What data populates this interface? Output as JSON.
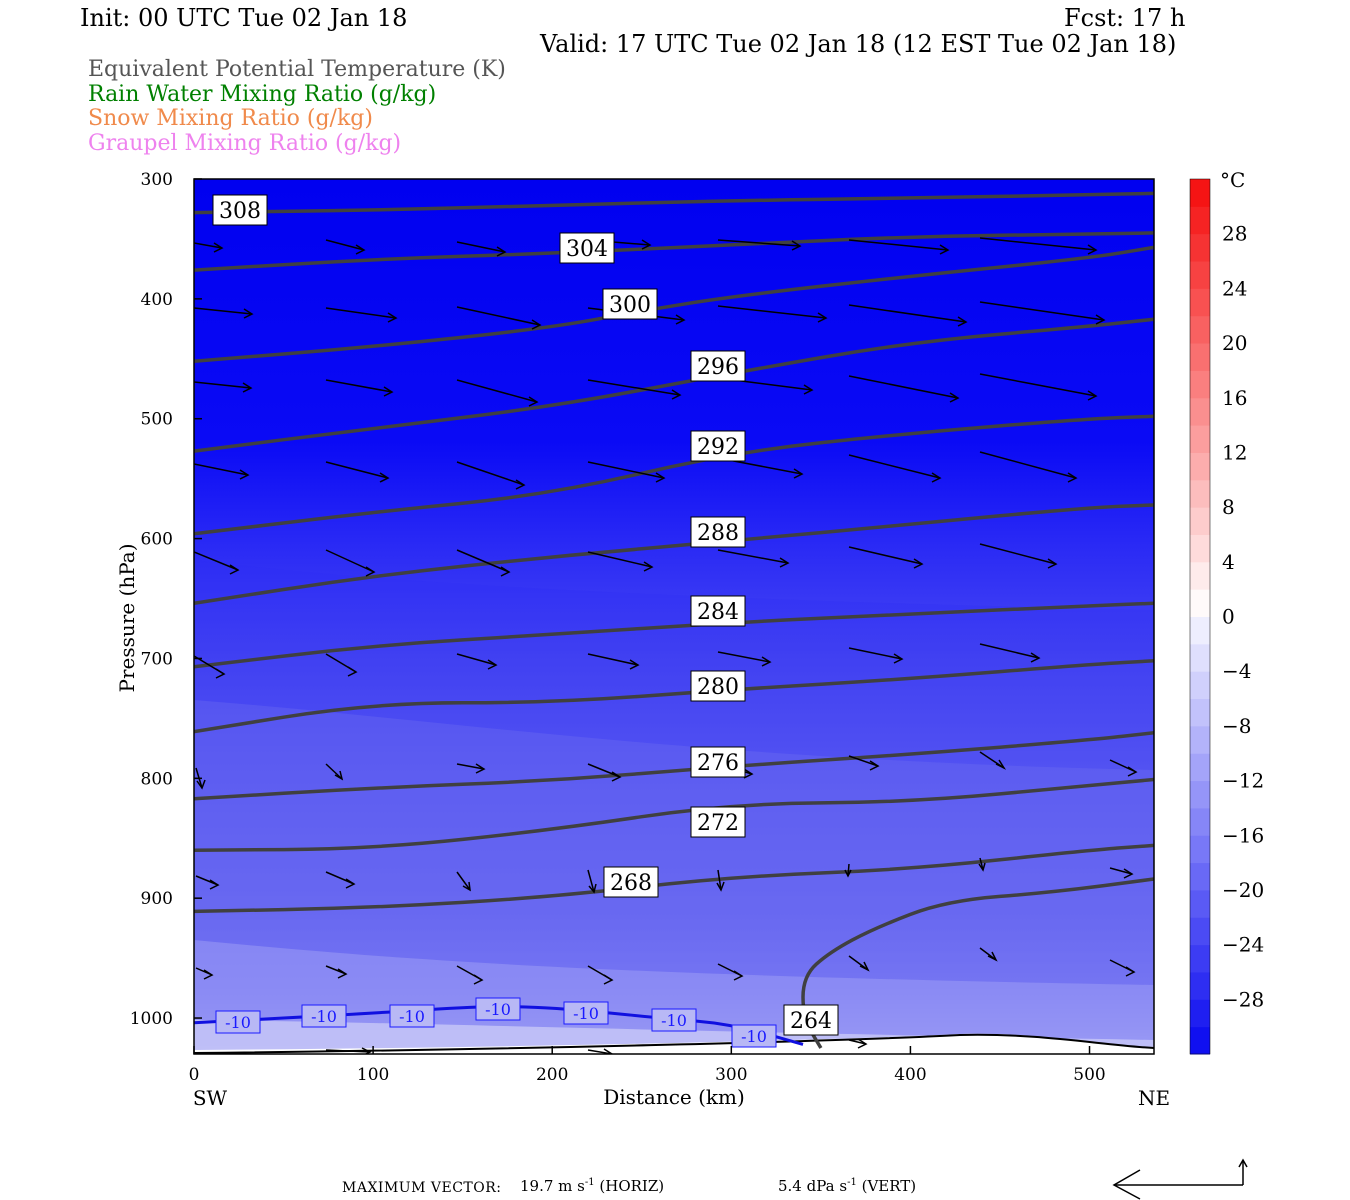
{
  "header": {
    "init": "Init: 00 UTC Tue 02 Jan 18",
    "fcst": "Fcst:   17 h",
    "valid": "Valid: 17 UTC Tue 02 Jan 18 (12 EST Tue 02 Jan 18)"
  },
  "legend": [
    {
      "text": "Equivalent Potential Temperature (K)",
      "color": "#555555"
    },
    {
      "text": "Rain Water Mixing Ratio (g/kg)",
      "color": "#008000"
    },
    {
      "text": "Snow Mixing Ratio (g/kg)",
      "color": "#f08a4b"
    },
    {
      "text": "Graupel Mixing Ratio (g/kg)",
      "color": "#ee82ee"
    }
  ],
  "footer": {
    "label": "MAXIMUM VECTOR:",
    "horiz": "19.7 m s",
    "horiz_sup": "-1",
    "horiz_tag": "(HORIZ)",
    "vert": "5.4 dPa s",
    "vert_sup": "-1",
    "vert_tag": "(VERT)"
  },
  "chart_data": {
    "type": "contour",
    "ylabel": "Pressure (hPa)",
    "xlabel": "Distance (km)",
    "x_end_labels": {
      "left": "SW",
      "right": "NE"
    },
    "xlim": [
      0,
      536
    ],
    "ylim": [
      1030,
      300
    ],
    "x_ticks": [
      0,
      100,
      200,
      300,
      400,
      500
    ],
    "y_ticks": [
      300,
      400,
      500,
      600,
      700,
      800,
      900,
      1000
    ],
    "colorbar": {
      "unit": "°C",
      "levels": [
        -32,
        -30,
        -28,
        -26,
        -24,
        -22,
        -20,
        -18,
        -16,
        -14,
        -12,
        -10,
        -8,
        -6,
        -4,
        -2,
        0,
        2,
        4,
        6,
        8,
        10,
        12,
        14,
        16,
        18,
        20,
        22,
        24,
        26,
        28,
        30,
        32
      ],
      "tick_labels": [
        -28,
        -24,
        -20,
        -16,
        -12,
        -8,
        -4,
        0,
        4,
        8,
        12,
        16,
        20,
        24,
        28
      ]
    },
    "theta_e_contours": [
      {
        "label": "308",
        "points": [
          [
            0,
            328
          ],
          [
            100,
            326
          ],
          [
            200,
            322
          ],
          [
            300,
            318
          ],
          [
            400,
            316
          ],
          [
            500,
            313
          ],
          [
            536,
            312
          ]
        ]
      },
      {
        "label": "304",
        "points": [
          [
            0,
            376
          ],
          [
            100,
            367
          ],
          [
            200,
            362
          ],
          [
            300,
            355
          ],
          [
            400,
            348
          ],
          [
            500,
            346
          ],
          [
            536,
            345
          ]
        ]
      },
      {
        "label": "300",
        "points": [
          [
            0,
            452
          ],
          [
            100,
            440
          ],
          [
            200,
            424
          ],
          [
            250,
            410
          ],
          [
            300,
            398
          ],
          [
            400,
            381
          ],
          [
            500,
            366
          ],
          [
            536,
            357
          ]
        ]
      },
      {
        "label": "296",
        "points": [
          [
            0,
            527
          ],
          [
            100,
            508
          ],
          [
            200,
            490
          ],
          [
            300,
            462
          ],
          [
            400,
            436
          ],
          [
            500,
            423
          ],
          [
            536,
            417
          ]
        ]
      },
      {
        "label": "292",
        "points": [
          [
            0,
            596
          ],
          [
            100,
            578
          ],
          [
            200,
            563
          ],
          [
            300,
            528
          ],
          [
            400,
            512
          ],
          [
            500,
            500
          ],
          [
            536,
            498
          ]
        ]
      },
      {
        "label": "288",
        "points": [
          [
            0,
            654
          ],
          [
            100,
            631
          ],
          [
            200,
            615
          ],
          [
            300,
            602
          ],
          [
            400,
            588
          ],
          [
            500,
            574
          ],
          [
            536,
            572
          ]
        ]
      },
      {
        "label": "284",
        "points": [
          [
            0,
            707
          ],
          [
            100,
            689
          ],
          [
            200,
            680
          ],
          [
            300,
            670
          ],
          [
            400,
            663
          ],
          [
            500,
            656
          ],
          [
            536,
            654
          ]
        ]
      },
      {
        "label": "280",
        "points": [
          [
            0,
            761
          ],
          [
            100,
            737
          ],
          [
            200,
            737
          ],
          [
            300,
            726
          ],
          [
            400,
            717
          ],
          [
            500,
            705
          ],
          [
            536,
            702
          ]
        ]
      },
      {
        "label": "276",
        "points": [
          [
            0,
            817
          ],
          [
            100,
            808
          ],
          [
            200,
            802
          ],
          [
            300,
            790
          ],
          [
            400,
            780
          ],
          [
            500,
            768
          ],
          [
            536,
            762
          ]
        ]
      },
      {
        "label": "272",
        "points": [
          [
            0,
            860
          ],
          [
            100,
            859
          ],
          [
            200,
            843
          ],
          [
            300,
            821
          ],
          [
            400,
            820
          ],
          [
            500,
            806
          ],
          [
            536,
            801
          ]
        ]
      },
      {
        "label": "268",
        "points": [
          [
            0,
            911
          ],
          [
            100,
            908
          ],
          [
            200,
            899
          ],
          [
            300,
            882
          ],
          [
            400,
            876
          ],
          [
            500,
            860
          ],
          [
            536,
            856
          ]
        ]
      },
      {
        "label": "264",
        "points": [
          [
            350,
            1025
          ],
          [
            340,
            1000
          ],
          [
            340,
            965
          ],
          [
            355,
            945
          ],
          [
            380,
            925
          ],
          [
            420,
            902
          ],
          [
            480,
            895
          ],
          [
            536,
            884
          ]
        ]
      }
    ],
    "temperature_contours": [
      {
        "label": "-10",
        "points": [
          [
            0,
            1004
          ],
          [
            100,
            996
          ],
          [
            160,
            990
          ],
          [
            200,
            991
          ],
          [
            260,
            1000
          ],
          [
            300,
            1005
          ],
          [
            340,
            1022
          ]
        ]
      }
    ],
    "temperature_contour_labels": [
      "-10",
      "-10",
      "-10",
      "-10",
      "-10",
      "-10",
      "-10"
    ],
    "theta_e_labels": [
      "308",
      "304",
      "300",
      "296",
      "292",
      "288",
      "284",
      "280",
      "276",
      "272",
      "268",
      "264"
    ]
  }
}
